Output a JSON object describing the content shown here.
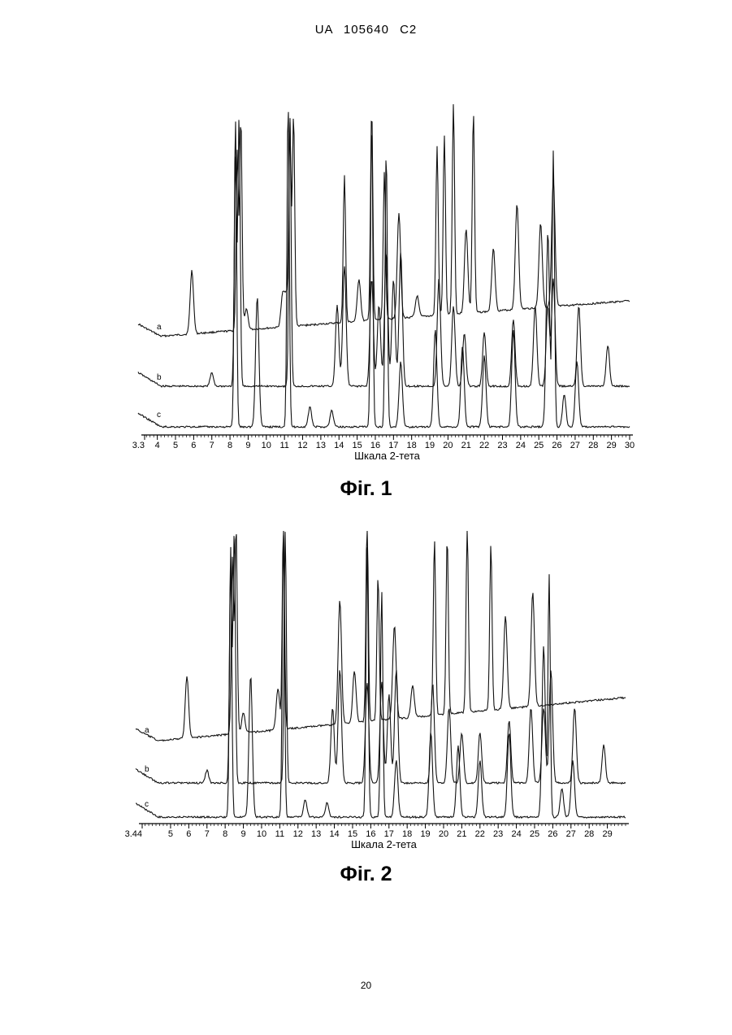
{
  "header": {
    "text": "UA   105640   C2"
  },
  "figures": [
    {
      "caption": "Фіг. 1",
      "xlabel": "Шкала 2-тета",
      "xlim": [
        3.3,
        30
      ],
      "ticks": [
        "3.3",
        "4",
        "5",
        "6",
        "7",
        "8",
        "9",
        "10",
        "11",
        "12",
        "13",
        "14",
        "15",
        "16",
        "17",
        "18",
        "19",
        "20",
        "21",
        "22",
        "23",
        "24",
        "25",
        "26",
        "27",
        "28",
        "29",
        "30"
      ],
      "traces": [
        {
          "label": "a"
        },
        {
          "label": "b"
        },
        {
          "label": "c"
        }
      ]
    },
    {
      "caption": "Фіг. 2",
      "xlabel": "Шкала 2-тета",
      "xlim": [
        3.44,
        30
      ],
      "ticks": [
        "3.44",
        "5",
        "6",
        "7",
        "8",
        "9",
        "10",
        "11",
        "12",
        "13",
        "14",
        "15",
        "16",
        "17",
        "18",
        "19",
        "20",
        "21",
        "22",
        "23",
        "24",
        "25",
        "26",
        "27",
        "28",
        "29"
      ],
      "traces": [
        {
          "label": "a"
        },
        {
          "label": "b"
        },
        {
          "label": "c"
        }
      ]
    }
  ],
  "page_number": "20",
  "chart_data": [
    {
      "type": "line",
      "title": "",
      "xlabel": "Шкала 2-тета",
      "ylabel": "",
      "xlim": [
        3.3,
        30
      ],
      "grid": false,
      "series": [
        {
          "name": "a",
          "peaks": [
            [
              5.9,
              0.3
            ],
            [
              8.4,
              0.85
            ],
            [
              8.6,
              1.0
            ],
            [
              8.9,
              0.1
            ],
            [
              10.9,
              0.15
            ],
            [
              11.1,
              0.15
            ],
            [
              11.3,
              0.95
            ],
            [
              11.5,
              1.0
            ],
            [
              14.3,
              0.7
            ],
            [
              15.1,
              0.2
            ],
            [
              15.8,
              1.0
            ],
            [
              16.5,
              0.7
            ],
            [
              17.3,
              0.5
            ],
            [
              18.3,
              0.1
            ],
            [
              19.4,
              0.8
            ],
            [
              19.8,
              0.85
            ],
            [
              20.3,
              1.0
            ],
            [
              21.0,
              0.4
            ],
            [
              21.4,
              0.95
            ],
            [
              22.5,
              0.3
            ],
            [
              23.8,
              0.5
            ],
            [
              25.1,
              0.4
            ],
            [
              25.8,
              0.6
            ]
          ]
        },
        {
          "name": "b",
          "peaks": [
            [
              7.0,
              0.05
            ],
            [
              8.3,
              0.85
            ],
            [
              8.5,
              1.0
            ],
            [
              11.3,
              1.0
            ],
            [
              13.9,
              0.3
            ],
            [
              14.3,
              0.45
            ],
            [
              15.8,
              0.4
            ],
            [
              16.2,
              0.3
            ],
            [
              16.6,
              0.5
            ],
            [
              17.0,
              0.4
            ],
            [
              17.4,
              0.5
            ],
            [
              19.5,
              0.4
            ],
            [
              20.3,
              0.3
            ],
            [
              20.9,
              0.2
            ],
            [
              22.0,
              0.2
            ],
            [
              23.6,
              0.25
            ],
            [
              24.8,
              0.3
            ],
            [
              25.5,
              0.3
            ],
            [
              25.8,
              0.4
            ],
            [
              27.2,
              0.3
            ],
            [
              28.8,
              0.15
            ]
          ]
        },
        {
          "name": "c",
          "peaks": [
            [
              8.3,
              0.95
            ],
            [
              9.5,
              0.4
            ],
            [
              11.2,
              1.0
            ],
            [
              12.4,
              0.06
            ],
            [
              13.6,
              0.05
            ],
            [
              15.8,
              0.95
            ],
            [
              16.6,
              0.85
            ],
            [
              17.4,
              0.2
            ],
            [
              19.3,
              0.3
            ],
            [
              20.8,
              0.25
            ],
            [
              22.0,
              0.22
            ],
            [
              23.6,
              0.3
            ],
            [
              25.5,
              0.6
            ],
            [
              25.8,
              0.85
            ],
            [
              26.4,
              0.1
            ],
            [
              27.1,
              0.2
            ]
          ]
        }
      ]
    },
    {
      "type": "line",
      "title": "",
      "xlabel": "Шкала 2-тета",
      "ylabel": "",
      "xlim": [
        3.44,
        30
      ],
      "grid": false,
      "series": [
        {
          "name": "a",
          "peaks": [
            [
              5.9,
              0.3
            ],
            [
              8.4,
              0.85
            ],
            [
              8.6,
              1.0
            ],
            [
              9.0,
              0.1
            ],
            [
              10.9,
              0.2
            ],
            [
              11.2,
              1.0
            ],
            [
              14.3,
              0.6
            ],
            [
              15.1,
              0.25
            ],
            [
              15.8,
              1.0
            ],
            [
              16.4,
              0.7
            ],
            [
              17.3,
              0.45
            ],
            [
              18.3,
              0.15
            ],
            [
              19.5,
              0.85
            ],
            [
              20.2,
              0.85
            ],
            [
              21.3,
              0.9
            ],
            [
              22.6,
              0.8
            ],
            [
              23.4,
              0.45
            ],
            [
              24.9,
              0.55
            ]
          ]
        },
        {
          "name": "b",
          "peaks": [
            [
              7.0,
              0.05
            ],
            [
              8.3,
              0.85
            ],
            [
              8.5,
              1.0
            ],
            [
              11.3,
              1.0
            ],
            [
              13.9,
              0.3
            ],
            [
              14.3,
              0.45
            ],
            [
              15.8,
              0.4
            ],
            [
              16.6,
              0.4
            ],
            [
              17.0,
              0.35
            ],
            [
              17.4,
              0.45
            ],
            [
              19.4,
              0.4
            ],
            [
              20.3,
              0.3
            ],
            [
              21.0,
              0.2
            ],
            [
              22.0,
              0.2
            ],
            [
              23.6,
              0.25
            ],
            [
              24.8,
              0.3
            ],
            [
              25.5,
              0.3
            ],
            [
              25.9,
              0.45
            ],
            [
              27.2,
              0.3
            ],
            [
              28.8,
              0.15
            ]
          ]
        },
        {
          "name": "c",
          "peaks": [
            [
              8.3,
              0.95
            ],
            [
              9.4,
              0.5
            ],
            [
              11.2,
              1.0
            ],
            [
              12.4,
              0.06
            ],
            [
              13.6,
              0.05
            ],
            [
              15.8,
              0.95
            ],
            [
              16.6,
              0.8
            ],
            [
              17.4,
              0.2
            ],
            [
              19.3,
              0.3
            ],
            [
              20.8,
              0.25
            ],
            [
              22.0,
              0.2
            ],
            [
              23.6,
              0.3
            ],
            [
              25.5,
              0.6
            ],
            [
              25.8,
              0.85
            ],
            [
              26.5,
              0.1
            ],
            [
              27.1,
              0.2
            ]
          ]
        }
      ]
    }
  ]
}
